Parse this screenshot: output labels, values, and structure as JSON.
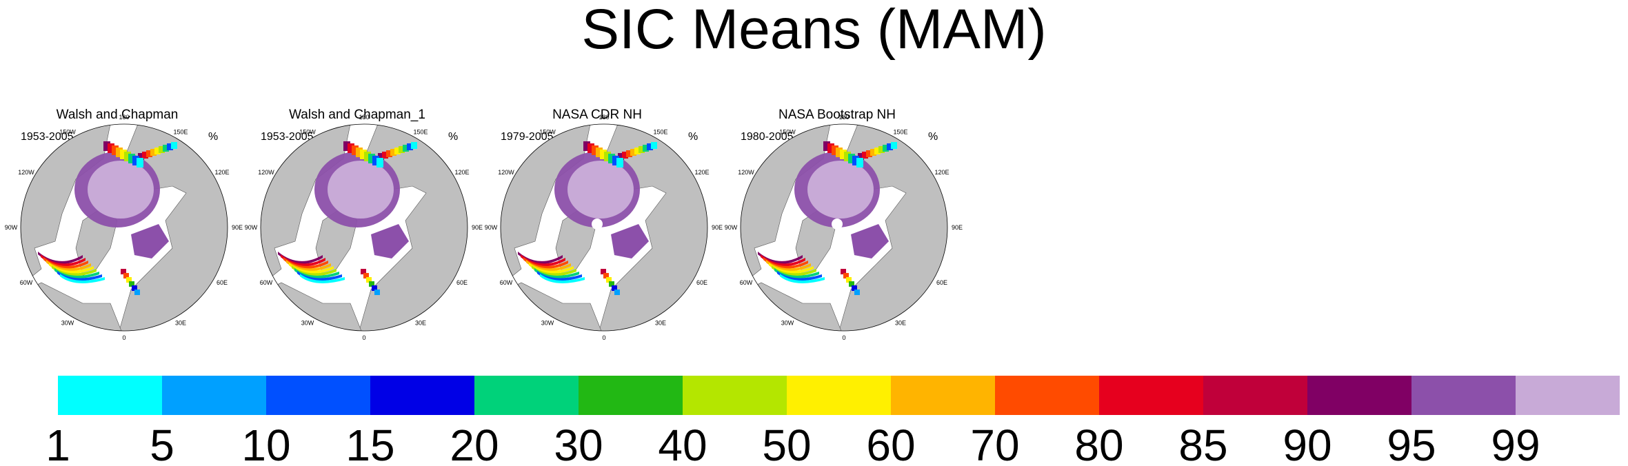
{
  "chart_data": {
    "type": "heatmap",
    "title": "SIC Means (MAM)",
    "variable": "sea ice concentration",
    "panels": [
      {
        "title": "Walsh and Chapman",
        "years": "1953-2005",
        "unit": "%"
      },
      {
        "title": "Walsh and Chapman_1",
        "years": "1953-2005",
        "unit": "%"
      },
      {
        "title": "NASA CDR NH",
        "years": "1979-2005",
        "unit": "%"
      },
      {
        "title": "NASA Bootstrap NH",
        "years": "1980-2005",
        "unit": "%"
      }
    ],
    "longitude_labels": [
      "180",
      "150E",
      "120E",
      "90E",
      "60E",
      "30E",
      "0",
      "30W",
      "60W",
      "90W",
      "120W",
      "150W"
    ],
    "colorbar": {
      "levels": [
        "1",
        "5",
        "10",
        "15",
        "20",
        "30",
        "40",
        "50",
        "60",
        "70",
        "80",
        "85",
        "90",
        "95",
        "99"
      ],
      "colors": [
        "#00ffff",
        "#00a0ff",
        "#0050ff",
        "#0000e6",
        "#00d27a",
        "#22b814",
        "#b4e600",
        "#fff000",
        "#ffb400",
        "#ff4b00",
        "#e6001e",
        "#c0003a",
        "#800064",
        "#8c50aa",
        "#c8aad7"
      ]
    }
  },
  "colors": {
    "land": "#bfbfbf",
    "coast": "#555555"
  }
}
